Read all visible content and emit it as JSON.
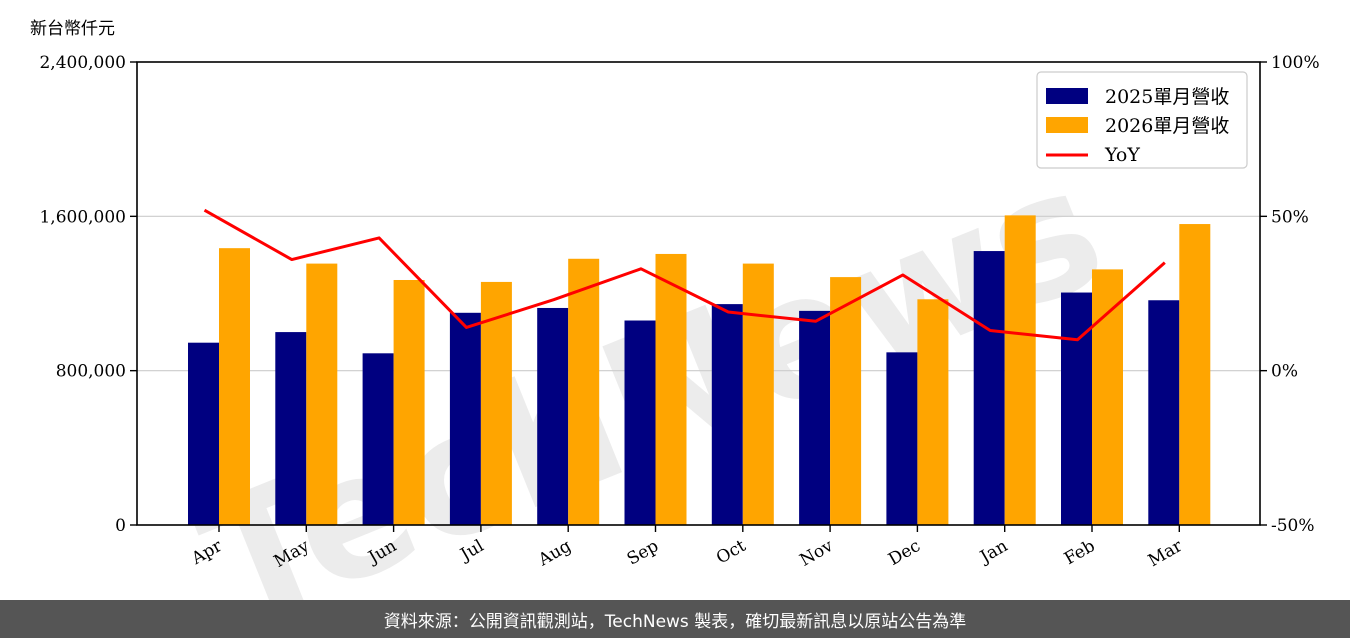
{
  "chart_data": {
    "type": "bar",
    "unit_label": "新台幣仟元",
    "categories": [
      "Apr",
      "May",
      "Jun",
      "Jul",
      "Aug",
      "Sep",
      "Oct",
      "Nov",
      "Dec",
      "Jan",
      "Feb",
      "Mar"
    ],
    "series": [
      {
        "name": "2025單月營收",
        "type": "bar",
        "color": "#000080",
        "values": [
          945000,
          1000000,
          890000,
          1100000,
          1125000,
          1060000,
          1145000,
          1110000,
          895000,
          1420000,
          1205000,
          1165000
        ]
      },
      {
        "name": "2026單月營收",
        "type": "bar",
        "color": "#FFA500",
        "values": [
          1435000,
          1355000,
          1270000,
          1260000,
          1380000,
          1405000,
          1355000,
          1285000,
          1170000,
          1605000,
          1325000,
          1560000
        ]
      },
      {
        "name": "YoY",
        "type": "line",
        "axis": "right",
        "color": "#FF0000",
        "values": [
          52,
          36,
          43,
          14,
          23,
          33,
          19,
          16,
          31,
          13,
          10,
          35
        ]
      }
    ],
    "yleft": {
      "min": 0,
      "max": 2400000,
      "ticks": [
        0,
        800000,
        1600000,
        2400000
      ],
      "tick_labels": [
        "0",
        "800,000",
        "1,600,000",
        "2,400,000"
      ]
    },
    "yright": {
      "min": -50,
      "max": 100,
      "ticks": [
        -50,
        0,
        50,
        100
      ],
      "tick_labels": [
        "-50%",
        "0%",
        "50%",
        "100%"
      ]
    },
    "grid": "horizontal",
    "legend": "top-right"
  },
  "watermark": "TechNews",
  "footer": {
    "text": "資料來源：公開資訊觀測站，TechNews 製表，確切最新訊息以原站公告為準"
  }
}
